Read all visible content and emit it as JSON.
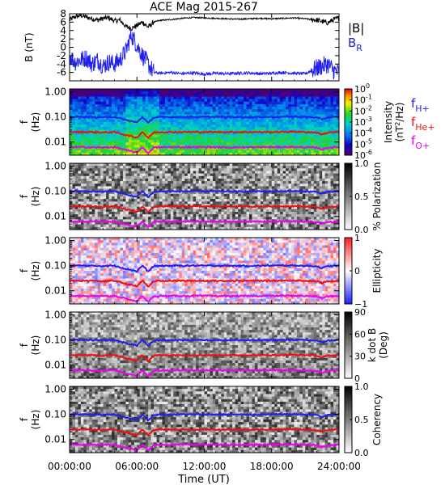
{
  "chart_data": {
    "title": "ACE Mag 2015-267",
    "type": "line",
    "xlabel": "Time (UT)",
    "x_ticks": [
      "00:00:00",
      "06:00:00",
      "12:00:00",
      "18:00:00",
      "24:00:00"
    ],
    "x_hours": [
      0,
      6,
      12,
      18,
      24
    ],
    "panels": [
      {
        "id": "field",
        "type": "line",
        "ylabel": "B (nT)",
        "ylim": [
          -8,
          8
        ],
        "y_ticks": [
          -6,
          -4,
          -2,
          0,
          2,
          4,
          6,
          8
        ],
        "legend": [
          {
            "label": "|B|",
            "color": "#000000"
          },
          {
            "label": "B",
            "sub": "R",
            "color": "#2020ee"
          }
        ],
        "series": [
          {
            "name": "|B|",
            "color": "#000000",
            "x": [
              0,
              0.5,
              1,
              1.5,
              2,
              2.5,
              3,
              3.5,
              4,
              4.5,
              5,
              5.5,
              6,
              6.5,
              7,
              7.5,
              8,
              9,
              10,
              11,
              12,
              13,
              14,
              15,
              16,
              17,
              18,
              19,
              20,
              21,
              22,
              23,
              23.5,
              24
            ],
            "y": [
              6.5,
              7.3,
              7.6,
              7.2,
              6.8,
              6.5,
              6.9,
              7.0,
              6.3,
              6.5,
              5.0,
              4.5,
              5.2,
              6.0,
              4.8,
              6.0,
              6.4,
              6.6,
              6.9,
              7.1,
              7.0,
              6.9,
              6.8,
              6.7,
              6.8,
              6.9,
              6.8,
              6.9,
              7.0,
              6.8,
              6.5,
              5.8,
              6.6,
              7.0
            ]
          },
          {
            "name": "B_R",
            "color": "#2020ee",
            "x": [
              0,
              0.5,
              1,
              1.5,
              2,
              2.5,
              3,
              3.5,
              4,
              4.5,
              5,
              5.5,
              6,
              6.5,
              7,
              7.5,
              8,
              9,
              10,
              11,
              12,
              13,
              14,
              15,
              16,
              17,
              18,
              19,
              20,
              21,
              22,
              23,
              23.5,
              24
            ],
            "y": [
              -2.0,
              -3.5,
              -3.0,
              -2.5,
              -4.0,
              -3.0,
              -4.5,
              -3.5,
              -4.0,
              -3.0,
              -1.0,
              3.0,
              0.5,
              -2.0,
              -4.0,
              -6.0,
              -6.2,
              -6.0,
              -6.3,
              -6.1,
              -6.4,
              -6.2,
              -6.3,
              -6.2,
              -6.1,
              -6.3,
              -6.2,
              -6.0,
              -6.2,
              -6.3,
              -5.0,
              -4.0,
              -5.5,
              -6.0
            ]
          }
        ]
      },
      {
        "id": "intensity",
        "type": "heatmap",
        "ylabel": "f (Hz)",
        "y_scale": "log",
        "ylim": [
          0.003,
          1.3
        ],
        "y_ticks": [
          "1.00",
          "0.10",
          "0.01"
        ],
        "colorbar": {
          "scheme": "rainbow",
          "ticks": [
            "10^0",
            "10^-1",
            "10^-2",
            "10^-3",
            "10^-4",
            "10^-5",
            "10^-6"
          ],
          "label": "Intensity (nT^2/Hz)"
        },
        "legend": [
          {
            "label": "f",
            "sub": "H+",
            "color": "#2020ee"
          },
          {
            "label": "f",
            "sub": "He+",
            "color": "#ee1010"
          },
          {
            "label": "f",
            "sub": "O+",
            "color": "#ee00ee"
          }
        ]
      },
      {
        "id": "polarization",
        "type": "heatmap",
        "ylabel": "f (Hz)",
        "y_scale": "log",
        "ylim": [
          0.003,
          1.3
        ],
        "y_ticks": [
          "1.00",
          "0.10",
          "0.01"
        ],
        "colorbar": {
          "scheme": "gray_reversed",
          "ticks": [
            "1.0",
            "0.5",
            "0.0"
          ],
          "label": "% Polarization"
        }
      },
      {
        "id": "ellipticity",
        "type": "heatmap",
        "ylabel": "f (Hz)",
        "y_scale": "log",
        "ylim": [
          0.003,
          1.3
        ],
        "y_ticks": [
          "1.00",
          "0.10",
          "0.01"
        ],
        "colorbar": {
          "scheme": "bwr",
          "ticks": [
            "1",
            "0",
            "−1"
          ],
          "label": "Ellipticity"
        }
      },
      {
        "id": "kdotb",
        "type": "heatmap",
        "ylabel": "f (Hz)",
        "y_scale": "log",
        "ylim": [
          0.003,
          1.3
        ],
        "y_ticks": [
          "1.00",
          "0.10",
          "0.01"
        ],
        "colorbar": {
          "scheme": "gray_reversed",
          "ticks": [
            "90",
            "60",
            "30",
            "0"
          ],
          "label": "k dot B (Deg)"
        }
      },
      {
        "id": "coherency",
        "type": "heatmap",
        "ylabel": "f (Hz)",
        "y_scale": "log",
        "ylim": [
          0.003,
          1.3
        ],
        "y_ticks": [
          "1.00",
          "0.10",
          "0.01"
        ],
        "colorbar": {
          "scheme": "gray_reversed",
          "ticks": [
            "1.0",
            "0.5",
            "0.0"
          ],
          "label": "Coherency"
        }
      }
    ],
    "gyrofrequency_lines": [
      {
        "name": "f_H+",
        "color": "#2020ee",
        "x": [
          0,
          1,
          2,
          3,
          4,
          5,
          6,
          6.5,
          7,
          7.5,
          8,
          10,
          12,
          14,
          16,
          18,
          20,
          22,
          22.5,
          23,
          24
        ],
        "y": [
          0.1,
          0.101,
          0.098,
          0.097,
          0.1,
          0.075,
          0.06,
          0.1,
          0.055,
          0.095,
          0.098,
          0.1,
          0.1,
          0.099,
          0.098,
          0.1,
          0.102,
          0.095,
          0.08,
          0.095,
          0.1
        ]
      },
      {
        "name": "f_He+",
        "color": "#ee1010",
        "x": [
          0,
          1,
          2,
          3,
          4,
          5,
          6,
          6.5,
          7,
          7.5,
          8,
          10,
          12,
          14,
          16,
          18,
          20,
          22,
          22.5,
          23,
          24
        ],
        "y": [
          0.025,
          0.025,
          0.025,
          0.024,
          0.025,
          0.019,
          0.015,
          0.025,
          0.014,
          0.024,
          0.025,
          0.025,
          0.025,
          0.025,
          0.025,
          0.025,
          0.026,
          0.024,
          0.02,
          0.024,
          0.025
        ]
      },
      {
        "name": "f_O+",
        "color": "#ee00ee",
        "x": [
          0,
          1,
          2,
          3,
          4,
          5,
          6,
          6.5,
          7,
          7.5,
          8,
          10,
          12,
          14,
          16,
          18,
          20,
          22,
          22.5,
          23,
          24
        ],
        "y": [
          0.0063,
          0.0063,
          0.0062,
          0.0061,
          0.0063,
          0.0048,
          0.0038,
          0.0062,
          0.0035,
          0.006,
          0.0062,
          0.0063,
          0.0063,
          0.0062,
          0.0062,
          0.0063,
          0.0064,
          0.006,
          0.005,
          0.006,
          0.0063
        ]
      }
    ]
  }
}
